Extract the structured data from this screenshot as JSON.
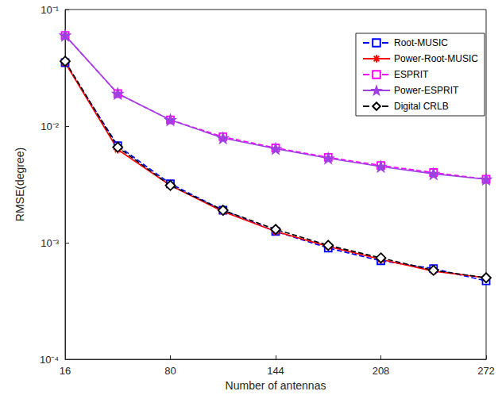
{
  "chart_data": {
    "type": "line",
    "x_label": "Number of antennas",
    "y_label": "RMSE(degree)",
    "x": [
      16,
      48,
      80,
      112,
      144,
      176,
      208,
      240,
      272
    ],
    "xlim": [
      16,
      272
    ],
    "xticks": [
      16,
      80,
      144,
      208,
      272
    ],
    "ylim": [
      0.0001,
      0.1
    ],
    "yticks": [
      {
        "value": 0.0001,
        "label": "10⁻⁴"
      },
      {
        "value": 0.001,
        "label": "10⁻³"
      },
      {
        "value": 0.01,
        "label": "10⁻²"
      },
      {
        "value": 0.1,
        "label": "10⁻¹"
      }
    ],
    "log": "y",
    "grid": false,
    "legend": "top-right",
    "series": [
      {
        "name": "Root-MUSIC",
        "color": "#0000ff",
        "marker": "square",
        "line_style": "dashed",
        "values": [
          0.035,
          0.0068,
          0.0032,
          0.0019,
          0.00125,
          0.0009,
          0.0007,
          0.0006,
          0.00047
        ]
      },
      {
        "name": "Power-Root-MUSIC",
        "color": "#ff0000",
        "marker": "asterisk",
        "line_style": "solid",
        "values": [
          0.035,
          0.0063,
          0.0031,
          0.00185,
          0.00125,
          0.00093,
          0.00072,
          0.00057,
          0.0005
        ]
      },
      {
        "name": "ESPRIT",
        "color": "#ff00ff",
        "marker": "square",
        "line_style": "dashed",
        "values": [
          0.06,
          0.019,
          0.0113,
          0.0081,
          0.0065,
          0.0054,
          0.0046,
          0.004,
          0.0035
        ]
      },
      {
        "name": "Power-ESPRIT",
        "color": "#a040e0",
        "marker": "pentagram",
        "line_style": "solid",
        "values": [
          0.06,
          0.019,
          0.0113,
          0.0079,
          0.0064,
          0.0053,
          0.0045,
          0.0039,
          0.0035
        ]
      },
      {
        "name": "Digital CRLB",
        "color": "#000000",
        "marker": "diamond",
        "line_style": "dashed",
        "values": [
          0.036,
          0.0066,
          0.0031,
          0.0019,
          0.0013,
          0.00095,
          0.00074,
          0.00058,
          0.0005
        ]
      }
    ]
  }
}
